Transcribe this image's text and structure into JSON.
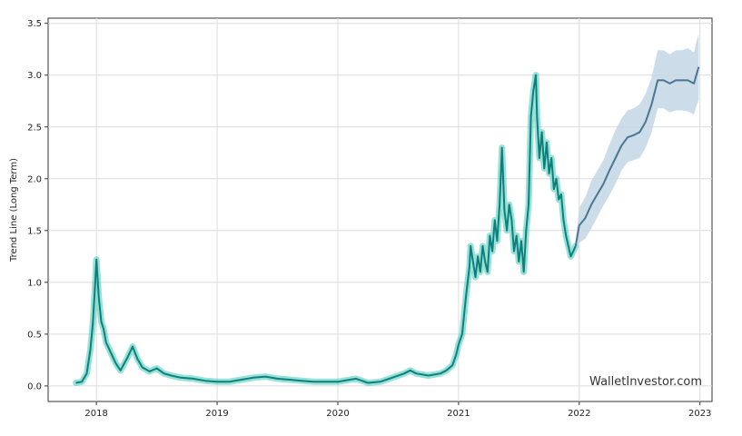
{
  "chart_data": {
    "type": "line",
    "title": "",
    "xlabel": "",
    "ylabel": "Trend Line (Long Term)",
    "watermark": "WalletInvestor.com",
    "x_ticks": [
      "2018",
      "2019",
      "2020",
      "2021",
      "2022",
      "2023"
    ],
    "y_ticks": [
      "0.0",
      "0.5",
      "1.0",
      "1.5",
      "2.0",
      "2.5",
      "3.0",
      "3.5"
    ],
    "xlim": [
      2017.6,
      2023.1
    ],
    "ylim": [
      -0.15,
      3.55
    ],
    "grid": true,
    "colors": {
      "history_line": "#0e7f7a",
      "history_band": "#40c8b8",
      "forecast_line": "#4a7693",
      "forecast_band": "#c3d6e4"
    },
    "series": [
      {
        "role": "history",
        "x": [
          2017.83,
          2017.88,
          2017.92,
          2017.95,
          2017.97,
          2017.985,
          2018.0,
          2018.02,
          2018.04,
          2018.06,
          2018.08,
          2018.12,
          2018.16,
          2018.2,
          2018.26,
          2018.3,
          2018.34,
          2018.38,
          2018.44,
          2018.5,
          2018.56,
          2018.62,
          2018.7,
          2018.8,
          2018.9,
          2019.0,
          2019.1,
          2019.2,
          2019.3,
          2019.4,
          2019.5,
          2019.6,
          2019.7,
          2019.8,
          2019.9,
          2020.0,
          2020.1,
          2020.15,
          2020.2,
          2020.25,
          2020.35,
          2020.45,
          2020.55,
          2020.6,
          2020.65,
          2020.75,
          2020.85,
          2020.9,
          2020.95,
          2020.98,
          2021.0,
          2021.03,
          2021.06,
          2021.09,
          2021.1,
          2021.12,
          2021.14,
          2021.16,
          2021.18,
          2021.2,
          2021.22,
          2021.24,
          2021.26,
          2021.28,
          2021.3,
          2021.32,
          2021.34,
          2021.36,
          2021.38,
          2021.4,
          2021.42,
          2021.44,
          2021.46,
          2021.48,
          2021.5,
          2021.52,
          2021.54,
          2021.56,
          2021.58,
          2021.6,
          2021.62,
          2021.64,
          2021.65,
          2021.67,
          2021.69,
          2021.71,
          2021.73,
          2021.75,
          2021.77,
          2021.79,
          2021.81,
          2021.83,
          2021.85,
          2021.87,
          2021.89,
          2021.91,
          2021.93,
          2021.95,
          2021.97
        ],
        "y": [
          0.03,
          0.04,
          0.12,
          0.35,
          0.6,
          0.9,
          1.22,
          0.85,
          0.62,
          0.55,
          0.42,
          0.32,
          0.22,
          0.15,
          0.28,
          0.38,
          0.26,
          0.18,
          0.14,
          0.17,
          0.12,
          0.1,
          0.08,
          0.07,
          0.05,
          0.04,
          0.04,
          0.06,
          0.08,
          0.09,
          0.07,
          0.06,
          0.05,
          0.04,
          0.04,
          0.04,
          0.06,
          0.07,
          0.05,
          0.03,
          0.04,
          0.08,
          0.12,
          0.15,
          0.12,
          0.1,
          0.12,
          0.15,
          0.2,
          0.3,
          0.4,
          0.5,
          0.85,
          1.15,
          1.35,
          1.2,
          1.05,
          1.25,
          1.1,
          1.35,
          1.2,
          1.1,
          1.45,
          1.3,
          1.6,
          1.4,
          1.75,
          2.3,
          1.7,
          1.5,
          1.75,
          1.6,
          1.3,
          1.45,
          1.2,
          1.4,
          1.1,
          1.5,
          1.75,
          2.6,
          2.85,
          3.0,
          2.6,
          2.2,
          2.45,
          2.1,
          2.35,
          2.05,
          2.2,
          1.9,
          2.0,
          1.8,
          1.85,
          1.6,
          1.45,
          1.35,
          1.25,
          1.3,
          1.35
        ]
      },
      {
        "role": "forecast",
        "x": [
          2021.97,
          2022.0,
          2022.05,
          2022.1,
          2022.15,
          2022.2,
          2022.25,
          2022.3,
          2022.35,
          2022.4,
          2022.45,
          2022.5,
          2022.55,
          2022.6,
          2022.65,
          2022.7,
          2022.75,
          2022.8,
          2022.85,
          2022.9,
          2022.95,
          2022.97,
          2022.99
        ],
        "y": [
          1.35,
          1.55,
          1.62,
          1.75,
          1.85,
          1.95,
          2.08,
          2.2,
          2.32,
          2.4,
          2.42,
          2.45,
          2.55,
          2.72,
          2.95,
          2.95,
          2.92,
          2.95,
          2.95,
          2.95,
          2.92,
          3.0,
          3.08
        ],
        "lower": [
          1.3,
          1.38,
          1.42,
          1.52,
          1.63,
          1.74,
          1.84,
          1.95,
          2.08,
          2.16,
          2.18,
          2.2,
          2.3,
          2.45,
          2.68,
          2.68,
          2.64,
          2.66,
          2.66,
          2.65,
          2.62,
          2.7,
          2.76
        ],
        "upper": [
          1.4,
          1.72,
          1.82,
          1.98,
          2.08,
          2.18,
          2.33,
          2.47,
          2.58,
          2.66,
          2.68,
          2.72,
          2.82,
          2.98,
          3.24,
          3.24,
          3.2,
          3.24,
          3.24,
          3.26,
          3.22,
          3.32,
          3.4
        ]
      }
    ]
  }
}
